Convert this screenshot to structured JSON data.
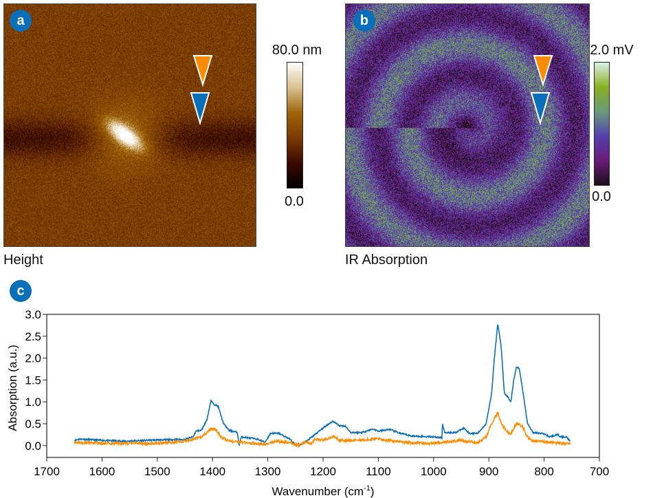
{
  "panels": {
    "a": {
      "badge": "a",
      "caption": "Height",
      "scale_max": "80.0 nm",
      "scale_min": "0.0",
      "colormap": [
        "#000000",
        "#3a0a00",
        "#7a3a00",
        "#a0650a",
        "#d8c090",
        "#ffffff"
      ]
    },
    "b": {
      "badge": "b",
      "caption": "IR Absorption",
      "scale_max": "2.0 mV",
      "scale_min": "0.0",
      "colormap": [
        "#1a0f18",
        "#6a1a78",
        "#5540b0",
        "#6a9a7a",
        "#8ab020",
        "#d8f0e8"
      ]
    },
    "markers": {
      "top_color": "#ff8c00",
      "bottom_color": "#0a6fb8"
    }
  },
  "chart_badge": "c",
  "chart_data": {
    "type": "line",
    "title": "",
    "xlabel": "Wavenumber (cm",
    "xlabel_sup": "-1",
    "xlabel_end": ")",
    "ylabel": "Absorption (a.u.)",
    "xlim": [
      1700,
      700
    ],
    "ylim": [
      -0.27,
      3.0
    ],
    "xticks": [
      1700,
      1600,
      1500,
      1400,
      1300,
      1200,
      1100,
      1000,
      900,
      800,
      700
    ],
    "yticks": [
      "0.0",
      "0.5",
      "1.0",
      "1.5",
      "2.0",
      "2.5",
      "3.0"
    ],
    "grid": false,
    "series": [
      {
        "color": "#0a6fb8",
        "points": [
          [
            1650,
            0.12
          ],
          [
            1640,
            0.15
          ],
          [
            1600,
            0.12
          ],
          [
            1560,
            0.1
          ],
          [
            1500,
            0.13
          ],
          [
            1450,
            0.14
          ],
          [
            1435,
            0.2
          ],
          [
            1430,
            0.33
          ],
          [
            1420,
            0.35
          ],
          [
            1410,
            0.6
          ],
          [
            1403,
            1.03
          ],
          [
            1398,
            0.95
          ],
          [
            1390,
            0.9
          ],
          [
            1380,
            0.5
          ],
          [
            1370,
            0.35
          ],
          [
            1355,
            0.3
          ],
          [
            1352,
            0.0
          ],
          [
            1348,
            0.2
          ],
          [
            1320,
            0.15
          ],
          [
            1305,
            0.08
          ],
          [
            1295,
            0.28
          ],
          [
            1280,
            0.28
          ],
          [
            1260,
            0.15
          ],
          [
            1250,
            0.02
          ],
          [
            1240,
            0.02
          ],
          [
            1230,
            0.1
          ],
          [
            1210,
            0.3
          ],
          [
            1195,
            0.45
          ],
          [
            1182,
            0.56
          ],
          [
            1170,
            0.45
          ],
          [
            1160,
            0.45
          ],
          [
            1150,
            0.3
          ],
          [
            1130,
            0.3
          ],
          [
            1110,
            0.38
          ],
          [
            1100,
            0.33
          ],
          [
            1080,
            0.37
          ],
          [
            1060,
            0.28
          ],
          [
            1040,
            0.22
          ],
          [
            1000,
            0.2
          ],
          [
            985,
            0.18
          ],
          [
            984,
            0.5
          ],
          [
            980,
            0.3
          ],
          [
            960,
            0.3
          ],
          [
            945,
            0.4
          ],
          [
            935,
            0.28
          ],
          [
            920,
            0.28
          ],
          [
            905,
            0.5
          ],
          [
            895,
            1.2
          ],
          [
            890,
            2.0
          ],
          [
            884,
            2.78
          ],
          [
            878,
            2.3
          ],
          [
            872,
            1.2
          ],
          [
            865,
            1.1
          ],
          [
            860,
            1.0
          ],
          [
            855,
            1.5
          ],
          [
            850,
            1.8
          ],
          [
            845,
            1.77
          ],
          [
            838,
            1.2
          ],
          [
            830,
            0.5
          ],
          [
            820,
            0.3
          ],
          [
            800,
            0.27
          ],
          [
            790,
            0.2
          ],
          [
            775,
            0.25
          ],
          [
            770,
            0.2
          ],
          [
            760,
            0.2
          ],
          [
            752,
            0.1
          ]
        ]
      },
      {
        "color": "#ff8c00",
        "points": [
          [
            1650,
            0.08
          ],
          [
            1600,
            0.05
          ],
          [
            1500,
            0.05
          ],
          [
            1450,
            0.1
          ],
          [
            1420,
            0.2
          ],
          [
            1403,
            0.38
          ],
          [
            1395,
            0.38
          ],
          [
            1385,
            0.2
          ],
          [
            1370,
            0.1
          ],
          [
            1300,
            0.03
          ],
          [
            1285,
            0.1
          ],
          [
            1260,
            0.07
          ],
          [
            1245,
            0.0
          ],
          [
            1235,
            0.08
          ],
          [
            1220,
            0.05
          ],
          [
            1215,
            0.15
          ],
          [
            1200,
            0.12
          ],
          [
            1180,
            0.22
          ],
          [
            1170,
            0.12
          ],
          [
            1150,
            0.12
          ],
          [
            1100,
            0.15
          ],
          [
            1050,
            0.07
          ],
          [
            1000,
            0.05
          ],
          [
            980,
            0.08
          ],
          [
            950,
            0.12
          ],
          [
            920,
            0.06
          ],
          [
            905,
            0.2
          ],
          [
            895,
            0.5
          ],
          [
            884,
            0.75
          ],
          [
            875,
            0.45
          ],
          [
            865,
            0.3
          ],
          [
            860,
            0.27
          ],
          [
            850,
            0.5
          ],
          [
            840,
            0.45
          ],
          [
            830,
            0.2
          ],
          [
            820,
            0.1
          ],
          [
            790,
            0.08
          ],
          [
            770,
            0.05
          ],
          [
            752,
            0.05
          ]
        ]
      }
    ]
  }
}
